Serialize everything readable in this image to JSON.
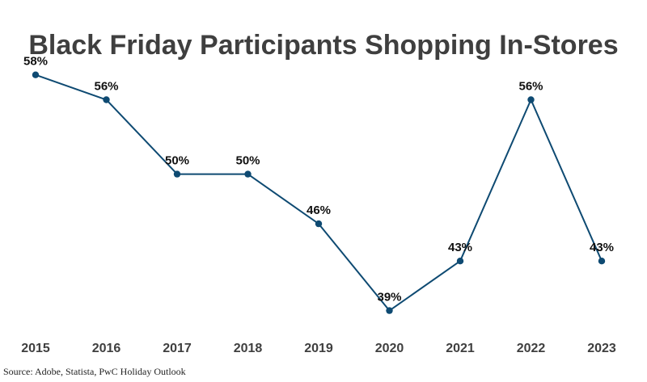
{
  "chart_data": {
    "type": "line",
    "title": "Black Friday Participants Shopping In-Stores",
    "categories": [
      "2015",
      "2016",
      "2017",
      "2018",
      "2019",
      "2020",
      "2021",
      "2022",
      "2023"
    ],
    "values": [
      58,
      56,
      50,
      50,
      46,
      39,
      43,
      56,
      43
    ],
    "data_labels": [
      "58%",
      "56%",
      "50%",
      "50%",
      "46%",
      "39%",
      "43%",
      "56%",
      "43%"
    ],
    "xlabel": "",
    "ylabel": "",
    "ylim": [
      38,
      60
    ],
    "grid": false,
    "legend": "none",
    "line_color": "#0e4a72",
    "marker_color": "#0e4a72"
  },
  "source": "Source: Adobe, Statista, PwC Holiday Outlook"
}
